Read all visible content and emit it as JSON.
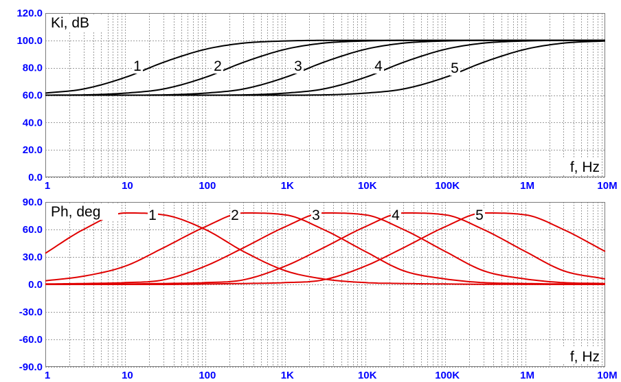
{
  "chart_data": [
    {
      "type": "line",
      "title": "Ki, dB",
      "xlabel": "f, Hz",
      "ylabel": "Ki, dB",
      "xscale": "log",
      "xlim": [
        1,
        10000000
      ],
      "ylim": [
        0,
        120
      ],
      "grid": true,
      "line_color": "#000000",
      "x_tick_labels": [
        "1",
        "10",
        "100",
        "1K",
        "10K",
        "100K",
        "1M",
        "10M"
      ],
      "y_tick_labels": [
        "0.0",
        "20.0",
        "40.0",
        "60.0",
        "80.0",
        "100.0",
        "120.0"
      ],
      "x": [
        1,
        3,
        10,
        30,
        100,
        300,
        1000,
        3000,
        10000,
        30000,
        100000,
        300000,
        1000000,
        3000000,
        10000000
      ],
      "series": [
        {
          "name": "1",
          "values": [
            61.5,
            64.5,
            73,
            84,
            93.5,
            98,
            99.6,
            100,
            100,
            100,
            100,
            100,
            100,
            100,
            100
          ]
        },
        {
          "name": "2",
          "values": [
            60,
            60.2,
            61.5,
            64.5,
            73,
            84,
            93.5,
            98,
            99.6,
            100,
            100,
            100,
            100,
            100,
            100
          ]
        },
        {
          "name": "3",
          "values": [
            60,
            60,
            60,
            60.2,
            61.5,
            64.5,
            73,
            84,
            93.5,
            98,
            99.6,
            100,
            100,
            100,
            100
          ]
        },
        {
          "name": "4",
          "values": [
            60,
            60,
            60,
            60,
            60,
            60.2,
            61.5,
            64.5,
            73,
            84,
            93.5,
            98,
            99.6,
            100,
            100
          ]
        },
        {
          "name": "5",
          "values": [
            60,
            60,
            60,
            60,
            60,
            60,
            60,
            60.2,
            61.5,
            64.5,
            73,
            84,
            93.5,
            98,
            99.6
          ]
        }
      ]
    },
    {
      "type": "line",
      "title": "Ph, deg",
      "xlabel": "f, Hz",
      "ylabel": "Ph, deg",
      "xscale": "log",
      "xlim": [
        1,
        10000000
      ],
      "ylim": [
        -90,
        90
      ],
      "grid": true,
      "line_color": "#e00000",
      "x_tick_labels": [
        "1",
        "10",
        "100",
        "1K",
        "10K",
        "100K",
        "1M",
        "10M"
      ],
      "y_tick_labels": [
        "-90.0",
        "-60.0",
        "-30.0",
        "0.0",
        "30.0",
        "60.0",
        "90.0"
      ],
      "x": [
        1,
        3,
        10,
        30,
        100,
        300,
        1000,
        3000,
        10000,
        30000,
        100000,
        300000,
        1000000,
        3000000,
        10000000
      ],
      "series": [
        {
          "name": "1",
          "values": [
            34,
            60,
            78,
            76,
            60,
            36,
            15,
            6,
            2,
            1,
            0.5,
            0.2,
            0.1,
            0,
            0
          ]
        },
        {
          "name": "2",
          "values": [
            4,
            9,
            20,
            40,
            63,
            78,
            76,
            60,
            36,
            15,
            6,
            2,
            1,
            0.5,
            0.2
          ]
        },
        {
          "name": "3",
          "values": [
            0.5,
            1,
            2,
            5,
            20,
            40,
            63,
            78,
            76,
            60,
            36,
            15,
            6,
            2,
            1
          ]
        },
        {
          "name": "4",
          "values": [
            0,
            0,
            0.5,
            1,
            2,
            5,
            20,
            40,
            63,
            78,
            76,
            60,
            36,
            15,
            6
          ]
        },
        {
          "name": "5",
          "values": [
            0,
            0,
            0,
            0,
            0.5,
            1,
            2,
            5,
            20,
            40,
            63,
            78,
            76,
            60,
            36
          ]
        }
      ]
    }
  ]
}
